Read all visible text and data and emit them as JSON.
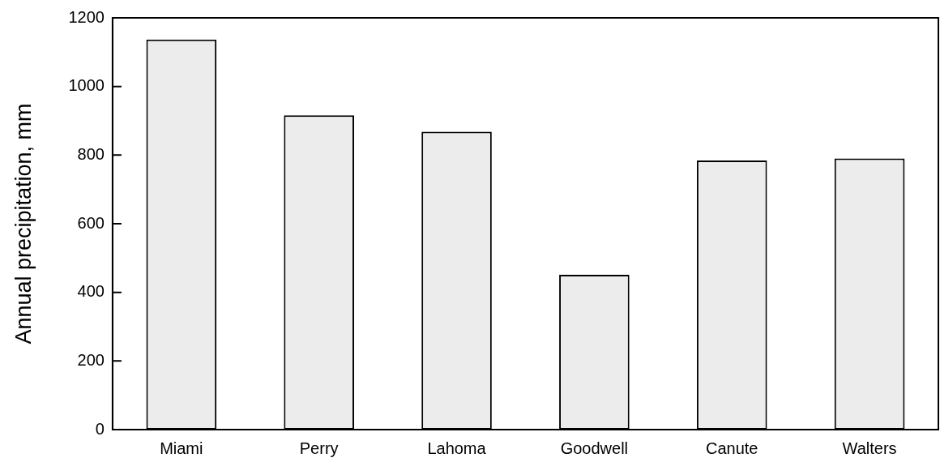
{
  "chart_data": {
    "type": "bar",
    "ylabel": "Annual precipitation, mm",
    "categories": [
      "Miami",
      "Perry",
      "Lahoma",
      "Goodwell",
      "Canute",
      "Walters"
    ],
    "values": [
      1137,
      916,
      868,
      451,
      784,
      790
    ],
    "color": "#ececec",
    "ylim": [
      0,
      1200
    ],
    "yticks": [
      0,
      200,
      400,
      600,
      800,
      1000,
      1200
    ],
    "grid": false,
    "legend": false
  }
}
